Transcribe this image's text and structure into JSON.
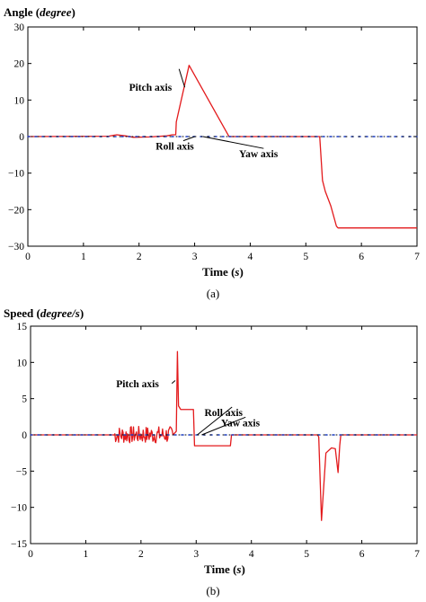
{
  "chart_data": [
    {
      "type": "line",
      "ylabel_main": "Angle (",
      "ylabel_unit": "degree",
      "ylabel_end": ")",
      "xlabel_main": "Time (",
      "xlabel_unit": "s",
      "xlabel_end": ")",
      "caption": "(a)",
      "xlim": [
        0,
        7
      ],
      "ylim": [
        -30,
        30
      ],
      "xticks": [
        0,
        1,
        2,
        3,
        4,
        5,
        6,
        7
      ],
      "yticks": [
        -30,
        -20,
        -10,
        0,
        10,
        20,
        30
      ],
      "grid": false,
      "annotations": [
        {
          "text": "Pitch axis",
          "x": 1.82,
          "y": 12.5,
          "arrow_to": [
            2.72,
            18.5
          ]
        },
        {
          "text": "Roll axis",
          "x": 2.3,
          "y": -3.6,
          "arrow_to": [
            3.0,
            0.0
          ]
        },
        {
          "text": "Yaw axis",
          "x": 3.8,
          "y": -5.7,
          "arrow_to": [
            3.15,
            0.0
          ]
        }
      ],
      "series": [
        {
          "color": "#e31a1c",
          "style": "solid",
          "x": [
            0,
            1.45,
            1.6,
            1.75,
            1.9,
            2.2,
            2.5,
            2.6,
            2.66,
            2.67,
            2.9,
            3.6,
            3.62,
            5.25,
            5.3,
            5.35,
            5.45,
            5.55,
            5.58,
            7.0
          ],
          "y": [
            0,
            0.1,
            0.5,
            0.2,
            -0.2,
            -0.1,
            0.2,
            0.5,
            0.5,
            4.0,
            19.5,
            0.5,
            0.0,
            0.0,
            -12.0,
            -15.0,
            -19.0,
            -24.5,
            -25.0,
            -25.0
          ]
        },
        {
          "color": "#1f3fbf",
          "style": "dotted",
          "x": [
            0,
            7
          ],
          "y": [
            0,
            0
          ]
        },
        {
          "color": "#000000",
          "style": "dotted",
          "x": [
            0,
            7
          ],
          "y": [
            0,
            0
          ]
        }
      ]
    },
    {
      "type": "line",
      "ylabel_main": "Speed (",
      "ylabel_unit": "degree/s",
      "ylabel_end": ")",
      "xlabel_main": "Time (",
      "xlabel_unit": "s",
      "xlabel_end": ")",
      "caption": "(b)",
      "xlim": [
        0,
        7
      ],
      "ylim": [
        -15,
        15
      ],
      "xticks": [
        0,
        1,
        2,
        3,
        4,
        5,
        6,
        7
      ],
      "yticks": [
        -15,
        -10,
        -5,
        0,
        5,
        10,
        15
      ],
      "grid": false,
      "annotations": [
        {
          "text": "Pitch axis",
          "x": 1.55,
          "y": 6.6,
          "arrow_to": [
            2.62,
            7.5
          ]
        },
        {
          "text": "Roll axis",
          "x": 3.15,
          "y": 2.6,
          "arrow_to": [
            3.02,
            0.0
          ]
        },
        {
          "text": "Yaw axis",
          "x": 3.45,
          "y": 1.2,
          "arrow_to": [
            3.1,
            0.0
          ]
        }
      ],
      "series": [
        {
          "color": "#e31a1c",
          "style": "solid",
          "noise": {
            "x_start": 1.5,
            "x_end": 2.58,
            "amplitude": 1.2
          },
          "x": [
            0,
            1.5,
            2.58,
            2.64,
            2.66,
            2.68,
            2.72,
            2.95,
            2.97,
            3.62,
            3.64,
            5.2,
            5.22,
            5.27,
            5.35,
            5.45,
            5.52,
            5.57,
            5.6,
            5.62,
            7.0
          ],
          "y": [
            0,
            0,
            0,
            0.5,
            11.5,
            4.0,
            3.5,
            3.5,
            -1.5,
            -1.5,
            0.0,
            0.0,
            -0.3,
            -11.8,
            -2.5,
            -1.8,
            -1.9,
            -5.2,
            -1.5,
            0.0,
            0.0
          ]
        },
        {
          "color": "#1f3fbf",
          "style": "dotted",
          "x": [
            0,
            7
          ],
          "y": [
            0,
            0
          ]
        },
        {
          "color": "#000000",
          "style": "dotted",
          "x": [
            0,
            7
          ],
          "y": [
            0,
            0
          ]
        }
      ]
    }
  ]
}
